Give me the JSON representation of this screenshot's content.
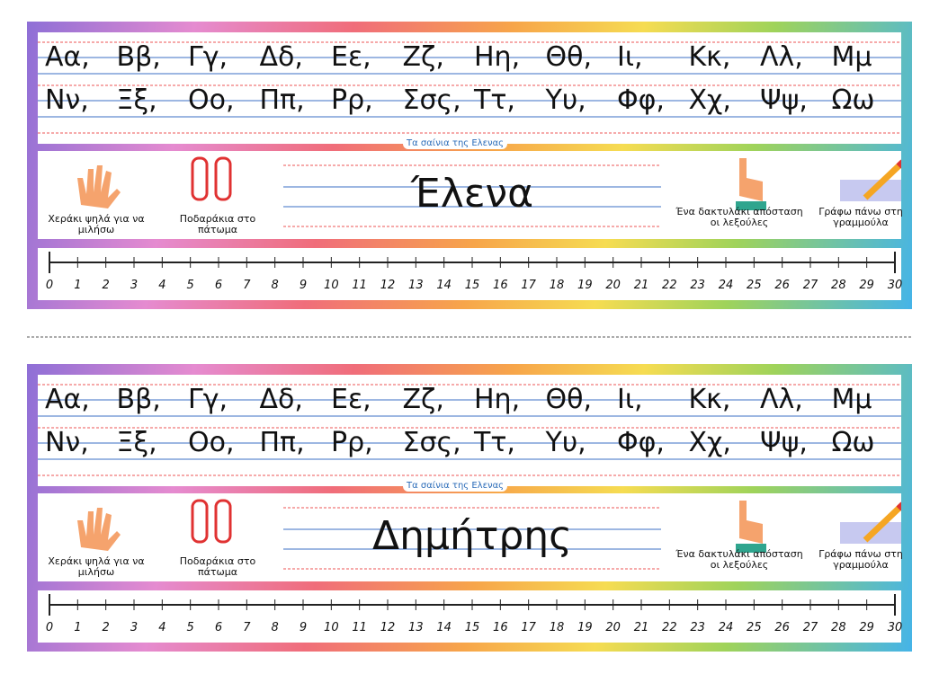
{
  "cards": [
    {
      "alphabet": {
        "row1": [
          "Αα,",
          "Ββ,",
          "Γγ,",
          "Δδ,",
          "Εε,",
          "Ζζ,",
          "Ηη,",
          "Θθ,",
          "Ιι,",
          "Κκ,",
          "Λλ,",
          "Μμ"
        ],
        "row2": [
          "Νν,",
          "Ξξ,",
          "Οο,",
          "Ππ,",
          "Ρρ,",
          "Σσς,",
          "Ττ,",
          "Υυ,",
          "Φφ,",
          "Χχ,",
          "Ψψ,",
          "Ωω"
        ]
      },
      "brand": "Τα σαίνια της Ελενας",
      "name": "Έλενα",
      "reminders": [
        "Χεράκι ψηλά για να μιλήσω",
        "Ποδαράκια στο πάτωμα",
        "Ένα δακτυλάκι απόσταση οι λεξούλες",
        "Γράφω πάνω στη γραμμούλα"
      ],
      "numbers": [
        0,
        1,
        2,
        3,
        4,
        5,
        6,
        7,
        8,
        9,
        10,
        11,
        12,
        13,
        14,
        15,
        16,
        17,
        18,
        19,
        20,
        21,
        22,
        23,
        24,
        25,
        26,
        27,
        28,
        29,
        30
      ]
    },
    {
      "alphabet": {
        "row1": [
          "Αα,",
          "Ββ,",
          "Γγ,",
          "Δδ,",
          "Εε,",
          "Ζζ,",
          "Ηη,",
          "Θθ,",
          "Ιι,",
          "Κκ,",
          "Λλ,",
          "Μμ"
        ],
        "row2": [
          "Νν,",
          "Ξξ,",
          "Οο,",
          "Ππ,",
          "Ρρ,",
          "Σσς,",
          "Ττ,",
          "Υυ,",
          "Φφ,",
          "Χχ,",
          "Ψψ,",
          "Ωω"
        ]
      },
      "brand": "Τα σαίνια της Ελενας",
      "name": "Δημήτρης",
      "reminders": [
        "Χεράκι ψηλά για να μιλήσω",
        "Ποδαράκια στο πάτωμα",
        "Ένα δακτυλάκι απόσταση οι λεξούλες",
        "Γράφω πάνω στη γραμμούλα"
      ],
      "numbers": [
        0,
        1,
        2,
        3,
        4,
        5,
        6,
        7,
        8,
        9,
        10,
        11,
        12,
        13,
        14,
        15,
        16,
        17,
        18,
        19,
        20,
        21,
        22,
        23,
        24,
        25,
        26,
        27,
        28,
        29,
        30
      ]
    }
  ]
}
